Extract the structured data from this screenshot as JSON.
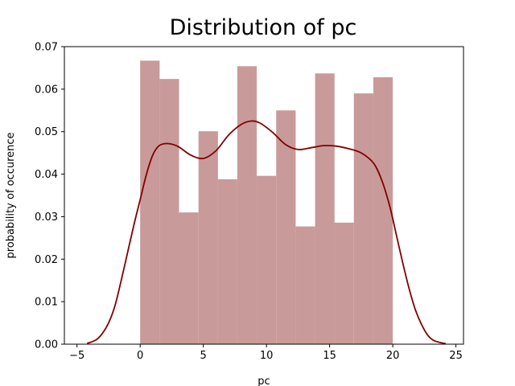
{
  "chart_data": {
    "type": "bar",
    "title": "Distribution of pc",
    "xlabel": "pc",
    "ylabel": "probability of occurence",
    "xlim": [
      -6.0,
      25.6
    ],
    "ylim": [
      0,
      0.07
    ],
    "xticks": [
      -5,
      0,
      5,
      10,
      15,
      20,
      25
    ],
    "yticks": [
      0.0,
      0.01,
      0.02,
      0.03,
      0.04,
      0.05,
      0.06,
      0.07
    ],
    "xtick_labels": [
      "−5",
      "0",
      "5",
      "10",
      "15",
      "20",
      "25"
    ],
    "ytick_labels": [
      "0.00",
      "0.01",
      "0.02",
      "0.03",
      "0.04",
      "0.05",
      "0.06",
      "0.07"
    ],
    "grid": false,
    "legend": null,
    "histogram": {
      "bin_width": 1.54,
      "bins": [
        {
          "x0": 0.0,
          "value": 0.0667
        },
        {
          "x0": 1.54,
          "value": 0.0624
        },
        {
          "x0": 3.08,
          "value": 0.031
        },
        {
          "x0": 4.62,
          "value": 0.0501
        },
        {
          "x0": 6.15,
          "value": 0.0388
        },
        {
          "x0": 7.69,
          "value": 0.0654
        },
        {
          "x0": 9.23,
          "value": 0.0396
        },
        {
          "x0": 10.77,
          "value": 0.055
        },
        {
          "x0": 12.31,
          "value": 0.0277
        },
        {
          "x0": 13.85,
          "value": 0.0637
        },
        {
          "x0": 15.38,
          "value": 0.0286
        },
        {
          "x0": 16.92,
          "value": 0.059
        },
        {
          "x0": 18.46,
          "value": 0.0628
        }
      ],
      "color": "#c99a9a"
    },
    "kde": {
      "color": "#800000",
      "points": [
        [
          -4.2,
          0.0002
        ],
        [
          -3.5,
          0.001
        ],
        [
          -3.0,
          0.0025
        ],
        [
          -2.5,
          0.005
        ],
        [
          -2.0,
          0.009
        ],
        [
          -1.5,
          0.015
        ],
        [
          -1.0,
          0.0215
        ],
        [
          -0.5,
          0.028
        ],
        [
          0.0,
          0.034
        ],
        [
          0.5,
          0.04
        ],
        [
          1.0,
          0.0445
        ],
        [
          1.5,
          0.0467
        ],
        [
          2.2,
          0.0472
        ],
        [
          3.0,
          0.0465
        ],
        [
          4.0,
          0.0445
        ],
        [
          5.0,
          0.0437
        ],
        [
          6.0,
          0.0455
        ],
        [
          7.0,
          0.0492
        ],
        [
          8.0,
          0.0517
        ],
        [
          8.8,
          0.0525
        ],
        [
          9.5,
          0.052
        ],
        [
          10.5,
          0.0498
        ],
        [
          11.5,
          0.047
        ],
        [
          12.5,
          0.0458
        ],
        [
          13.5,
          0.0462
        ],
        [
          14.5,
          0.0467
        ],
        [
          15.5,
          0.0466
        ],
        [
          16.5,
          0.046
        ],
        [
          17.5,
          0.045
        ],
        [
          18.5,
          0.0425
        ],
        [
          19.2,
          0.038
        ],
        [
          19.8,
          0.032
        ],
        [
          20.3,
          0.0255
        ],
        [
          20.8,
          0.019
        ],
        [
          21.3,
          0.013
        ],
        [
          21.8,
          0.008
        ],
        [
          22.3,
          0.0045
        ],
        [
          22.8,
          0.002
        ],
        [
          23.3,
          0.0008
        ],
        [
          24.2,
          0.0001
        ]
      ]
    }
  }
}
